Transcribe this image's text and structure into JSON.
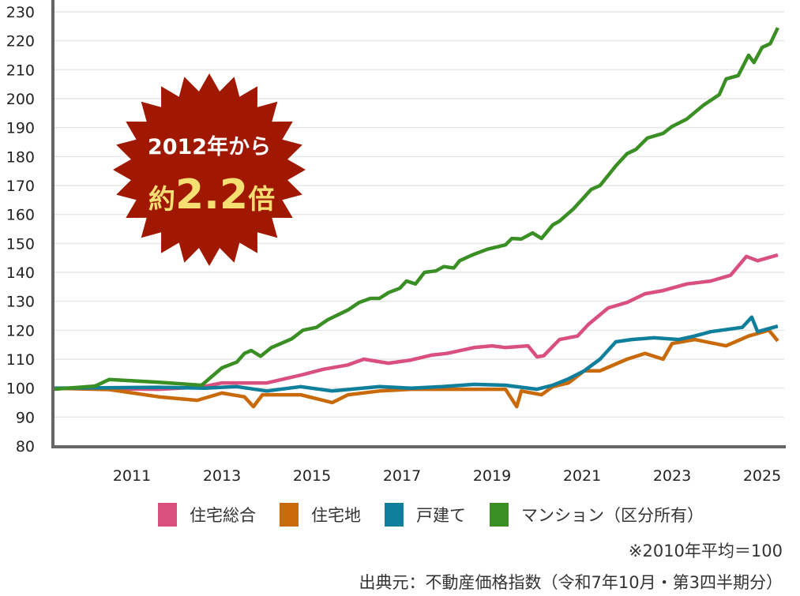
{
  "chart_data": {
    "type": "line",
    "title": "",
    "xlabel": "",
    "ylabel": "",
    "ylim": [
      80,
      230
    ],
    "yticks": [
      80,
      90,
      100,
      110,
      120,
      130,
      140,
      150,
      160,
      170,
      180,
      190,
      200,
      210,
      220,
      230
    ],
    "xticks": [
      2011,
      2013,
      2015,
      2017,
      2019,
      2021,
      2023,
      2025
    ],
    "xticklabels": [
      "2011",
      "2013",
      "2015",
      "2017",
      "2019",
      "2021",
      "2023",
      "2025"
    ],
    "grid": "horizontal",
    "legend": "bottom",
    "series": [
      {
        "name": "住宅総合",
        "color": "#d9507f",
        "points": [
          [
            2009.25,
            100
          ],
          [
            2011.6,
            99.6
          ],
          [
            2012.55,
            100.4
          ],
          [
            2013,
            101.8
          ],
          [
            2014,
            101.8
          ],
          [
            2014.75,
            104.5
          ],
          [
            2015.25,
            106.5
          ],
          [
            2015.8,
            108
          ],
          [
            2016.15,
            110
          ],
          [
            2016.7,
            108.6
          ],
          [
            2017.2,
            109.7
          ],
          [
            2017.65,
            111.4
          ],
          [
            2018,
            112
          ],
          [
            2018.6,
            114
          ],
          [
            2019,
            114.6
          ],
          [
            2019.3,
            114
          ],
          [
            2019.8,
            114.6
          ],
          [
            2020,
            110.8
          ],
          [
            2020.15,
            111.2
          ],
          [
            2020.5,
            116.8
          ],
          [
            2020.9,
            118
          ],
          [
            2021.14,
            122
          ],
          [
            2021.58,
            127.7
          ],
          [
            2022,
            129.6
          ],
          [
            2022.4,
            132.6
          ],
          [
            2022.8,
            133.7
          ],
          [
            2023.33,
            136
          ],
          [
            2023.86,
            137
          ],
          [
            2024.3,
            139
          ],
          [
            2024.65,
            145.5
          ],
          [
            2024.9,
            144
          ],
          [
            2025.35,
            146
          ]
        ]
      },
      {
        "name": "住宅地",
        "color": "#c96a0a",
        "points": [
          [
            2009.25,
            100
          ],
          [
            2010.5,
            99.5
          ],
          [
            2011.6,
            97
          ],
          [
            2012.45,
            95.8
          ],
          [
            2013,
            98.3
          ],
          [
            2013.5,
            97
          ],
          [
            2013.7,
            93.6
          ],
          [
            2013.9,
            97.7
          ],
          [
            2014.75,
            97.7
          ],
          [
            2015.45,
            95
          ],
          [
            2015.8,
            97.7
          ],
          [
            2016.5,
            99
          ],
          [
            2017.2,
            99.6
          ],
          [
            2017.9,
            99.6
          ],
          [
            2018.6,
            99.6
          ],
          [
            2019.3,
            99.6
          ],
          [
            2019.55,
            93.6
          ],
          [
            2019.65,
            99
          ],
          [
            2020.1,
            97.7
          ],
          [
            2020.35,
            100.5
          ],
          [
            2020.7,
            101.8
          ],
          [
            2021.05,
            106
          ],
          [
            2021.4,
            106
          ],
          [
            2022,
            110
          ],
          [
            2022.4,
            112
          ],
          [
            2022.8,
            110
          ],
          [
            2023,
            115.4
          ],
          [
            2023.5,
            116.8
          ],
          [
            2024.2,
            114.6
          ],
          [
            2024.7,
            118
          ],
          [
            2025.15,
            120
          ],
          [
            2025.35,
            116.3
          ]
        ]
      },
      {
        "name": "戸建て",
        "color": "#0f7f9b",
        "points": [
          [
            2009.25,
            100
          ],
          [
            2011.6,
            100.3
          ],
          [
            2012.6,
            100
          ],
          [
            2013.33,
            100.5
          ],
          [
            2014,
            99
          ],
          [
            2014.75,
            100.5
          ],
          [
            2015.45,
            99
          ],
          [
            2016.5,
            100.5
          ],
          [
            2017.2,
            100
          ],
          [
            2017.9,
            100.5
          ],
          [
            2018.6,
            101.3
          ],
          [
            2019.3,
            101
          ],
          [
            2020,
            99.6
          ],
          [
            2020.35,
            101
          ],
          [
            2020.7,
            103.2
          ],
          [
            2021.05,
            106
          ],
          [
            2021.4,
            110
          ],
          [
            2021.75,
            116
          ],
          [
            2022.1,
            116.8
          ],
          [
            2022.6,
            117.4
          ],
          [
            2023.15,
            116.8
          ],
          [
            2023.5,
            118
          ],
          [
            2023.86,
            119.5
          ],
          [
            2024.56,
            121
          ],
          [
            2024.77,
            124.5
          ],
          [
            2024.9,
            119.5
          ],
          [
            2025.35,
            121.4
          ]
        ]
      },
      {
        "name": "マンション（区分所有）",
        "color": "#3a8f24",
        "points": [
          [
            2009.25,
            99.6
          ],
          [
            2010.18,
            100.7
          ],
          [
            2010.5,
            103
          ],
          [
            2011.6,
            102
          ],
          [
            2012.55,
            101
          ],
          [
            2013,
            107
          ],
          [
            2013.33,
            109
          ],
          [
            2013.5,
            112
          ],
          [
            2013.65,
            113
          ],
          [
            2013.86,
            111
          ],
          [
            2014.1,
            114
          ],
          [
            2014.55,
            117
          ],
          [
            2014.8,
            120
          ],
          [
            2015.1,
            121
          ],
          [
            2015.35,
            123.6
          ],
          [
            2015.6,
            125.5
          ],
          [
            2015.8,
            127
          ],
          [
            2016.05,
            129.6
          ],
          [
            2016.3,
            131
          ],
          [
            2016.5,
            131
          ],
          [
            2016.7,
            133
          ],
          [
            2016.95,
            134.5
          ],
          [
            2017.1,
            137
          ],
          [
            2017.3,
            136
          ],
          [
            2017.5,
            140
          ],
          [
            2017.75,
            140.5
          ],
          [
            2017.93,
            142
          ],
          [
            2018.15,
            141.5
          ],
          [
            2018.28,
            144
          ],
          [
            2018.56,
            146
          ],
          [
            2018.9,
            148
          ],
          [
            2019.3,
            149.5
          ],
          [
            2019.44,
            151.7
          ],
          [
            2019.65,
            151.5
          ],
          [
            2019.9,
            153.6
          ],
          [
            2020.1,
            151.7
          ],
          [
            2020.35,
            156.4
          ],
          [
            2020.5,
            157.7
          ],
          [
            2020.8,
            161.8
          ],
          [
            2021.05,
            166
          ],
          [
            2021.2,
            168.6
          ],
          [
            2021.4,
            170
          ],
          [
            2021.75,
            176.8
          ],
          [
            2022,
            181
          ],
          [
            2022.2,
            182.5
          ],
          [
            2022.45,
            186.4
          ],
          [
            2022.8,
            188
          ],
          [
            2023,
            190.4
          ],
          [
            2023.33,
            193
          ],
          [
            2023.7,
            197.8
          ],
          [
            2024.05,
            201.4
          ],
          [
            2024.2,
            206.8
          ],
          [
            2024.47,
            208
          ],
          [
            2024.7,
            215
          ],
          [
            2024.82,
            212.5
          ],
          [
            2025,
            217.7
          ],
          [
            2025.18,
            219
          ],
          [
            2025.35,
            224.5
          ]
        ]
      }
    ],
    "annotation": {
      "line1": "2012年から",
      "prefix": "約",
      "value": "2.2",
      "suffix": "倍",
      "fill": "#a01800",
      "value_color": "#f6df72"
    },
    "notes": [
      "※2010年平均＝100",
      "出典元：不動産価格指数（令和7年10月・第3四半期分）"
    ]
  }
}
